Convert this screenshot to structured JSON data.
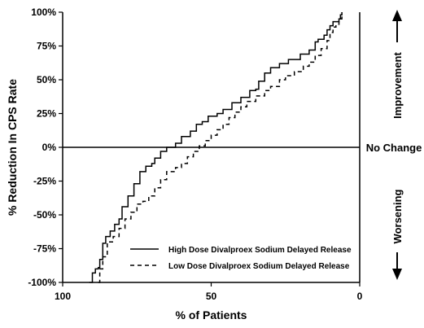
{
  "chart_data": {
    "type": "line",
    "xlabel": "% of Patients",
    "ylabel": "% Reduction In CPS Rate",
    "xlim": [
      100,
      0
    ],
    "ylim": [
      -100,
      100
    ],
    "x_ticks": [
      100,
      50,
      0
    ],
    "y_ticks": [
      -100,
      -75,
      -50,
      -25,
      0,
      25,
      50,
      75,
      100
    ],
    "y_tick_labels": [
      "-100%",
      "-75%",
      "-50%",
      "-25%",
      "0%",
      "25%",
      "50%",
      "75%",
      "100%"
    ],
    "zero_line_label": "No Change",
    "annotations": {
      "upper": "Improvement",
      "lower": "Worsening"
    },
    "grid": false,
    "legend_position": "bottom-right",
    "series": [
      {
        "name": "High Dose Divalproex Sodium Delayed Release",
        "style": "solid",
        "points": [
          [
            91,
            -100
          ],
          [
            90,
            -93
          ],
          [
            89,
            -90
          ],
          [
            88,
            -89
          ],
          [
            87.5,
            -83
          ],
          [
            86.5,
            -71
          ],
          [
            85.5,
            -66
          ],
          [
            84,
            -62
          ],
          [
            82.5,
            -57
          ],
          [
            81,
            -53
          ],
          [
            80,
            -44
          ],
          [
            78,
            -36
          ],
          [
            76,
            -27
          ],
          [
            74,
            -18
          ],
          [
            72,
            -14
          ],
          [
            70,
            -12
          ],
          [
            69,
            -8
          ],
          [
            67,
            -3
          ],
          [
            65,
            0
          ],
          [
            62,
            3
          ],
          [
            60,
            8
          ],
          [
            57,
            12
          ],
          [
            55,
            17
          ],
          [
            53,
            19
          ],
          [
            51,
            23
          ],
          [
            48,
            25
          ],
          [
            46,
            28
          ],
          [
            43,
            33
          ],
          [
            40,
            37
          ],
          [
            37,
            42
          ],
          [
            35,
            43
          ],
          [
            34,
            49
          ],
          [
            32,
            55
          ],
          [
            30,
            59
          ],
          [
            27,
            62
          ],
          [
            24,
            65
          ],
          [
            20,
            69
          ],
          [
            17,
            72
          ],
          [
            15,
            78
          ],
          [
            14,
            80
          ],
          [
            12,
            83
          ],
          [
            11,
            87
          ],
          [
            10,
            90
          ],
          [
            9,
            93
          ],
          [
            7,
            95
          ],
          [
            6.5,
            98
          ],
          [
            6,
            100
          ]
        ]
      },
      {
        "name": "Low Dose Divalproex Sodium Delayed Release",
        "style": "dashed",
        "points": [
          [
            88,
            -100
          ],
          [
            87.5,
            -90
          ],
          [
            86.5,
            -81
          ],
          [
            85,
            -70
          ],
          [
            83,
            -66
          ],
          [
            81,
            -60
          ],
          [
            79,
            -53
          ],
          [
            77,
            -48
          ],
          [
            75,
            -42
          ],
          [
            73,
            -40
          ],
          [
            71,
            -36
          ],
          [
            69,
            -30
          ],
          [
            67,
            -24
          ],
          [
            65,
            -18
          ],
          [
            62,
            -15
          ],
          [
            60,
            -12
          ],
          [
            58,
            -7
          ],
          [
            56,
            -3
          ],
          [
            54,
            1
          ],
          [
            52,
            5
          ],
          [
            50,
            9
          ],
          [
            48,
            13
          ],
          [
            46,
            17
          ],
          [
            44,
            22
          ],
          [
            42,
            26
          ],
          [
            40,
            30
          ],
          [
            38,
            34
          ],
          [
            35,
            38
          ],
          [
            32,
            42
          ],
          [
            30,
            45
          ],
          [
            27,
            50
          ],
          [
            25,
            53
          ],
          [
            22,
            56
          ],
          [
            19,
            60
          ],
          [
            17,
            63
          ],
          [
            15,
            68
          ],
          [
            13,
            73
          ],
          [
            11,
            79
          ],
          [
            10,
            85
          ],
          [
            9,
            89
          ],
          [
            8,
            91
          ],
          [
            7,
            95
          ],
          [
            6,
            100
          ]
        ]
      }
    ]
  }
}
